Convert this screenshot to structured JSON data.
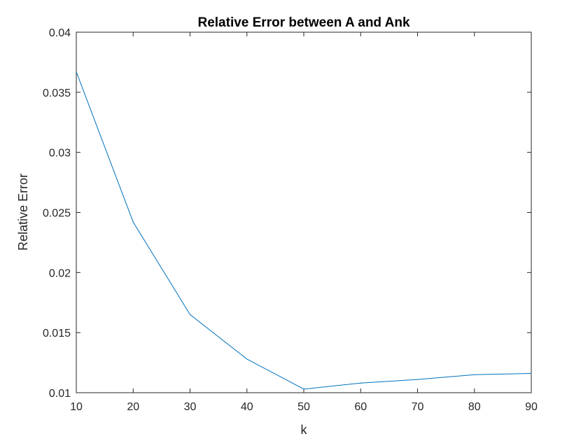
{
  "chart_data": {
    "type": "line",
    "title": "Relative Error between A and Ank",
    "xlabel": "k",
    "ylabel": "Relative Error",
    "xlim": [
      10,
      90
    ],
    "ylim": [
      0.01,
      0.04
    ],
    "xticks": [
      10,
      20,
      30,
      40,
      50,
      60,
      70,
      80,
      90
    ],
    "xtick_labels": [
      "10",
      "20",
      "30",
      "40",
      "50",
      "60",
      "70",
      "80",
      "90"
    ],
    "yticks": [
      0.01,
      0.015,
      0.02,
      0.025,
      0.03,
      0.035,
      0.04
    ],
    "ytick_labels": [
      "0.01",
      "0.015",
      "0.02",
      "0.025",
      "0.03",
      "0.035",
      "0.04"
    ],
    "grid": false,
    "series": [
      {
        "color": "#0072bd",
        "x": [
          10,
          20,
          30,
          40,
          50,
          60,
          70,
          80,
          90
        ],
        "y": [
          0.0367,
          0.0242,
          0.0165,
          0.0128,
          0.0103,
          0.0108,
          0.0111,
          0.0115,
          0.0116
        ]
      }
    ]
  }
}
